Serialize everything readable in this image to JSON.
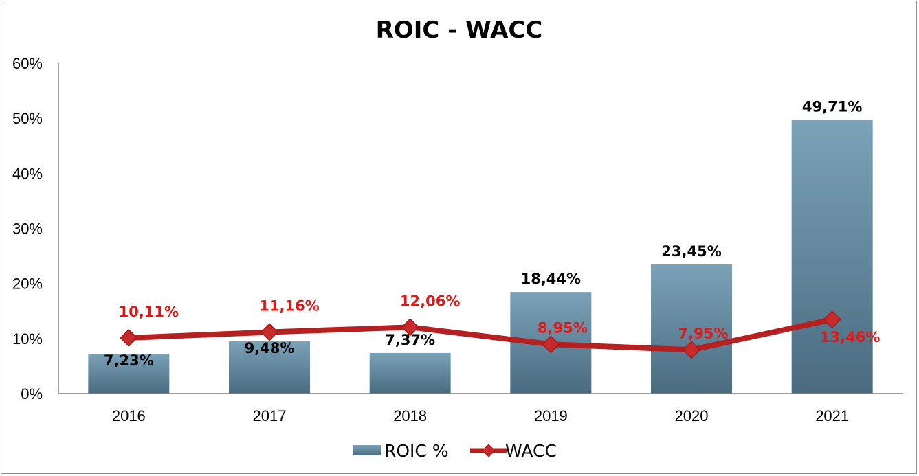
{
  "chart_data": {
    "type": "bar",
    "title": "ROIC - WACC",
    "categories": [
      "2016",
      "2017",
      "2018",
      "2019",
      "2020",
      "2021"
    ],
    "ylim": [
      0,
      60
    ],
    "yticks": [
      "0%",
      "10%",
      "20%",
      "30%",
      "40%",
      "50%",
      "60%"
    ],
    "grid": false,
    "legend_position": "bottom",
    "series": [
      {
        "name": "ROIC %",
        "kind": "bar",
        "color": "#5a7f96",
        "values": [
          7.23,
          9.48,
          7.37,
          18.44,
          23.45,
          49.71
        ],
        "labels": [
          "7,23%",
          "9,48%",
          "7,37%",
          "18,44%",
          "23,45%",
          "49,71%"
        ]
      },
      {
        "name": "WACC",
        "kind": "line",
        "color": "#b52020",
        "label_color": "#e01818",
        "values": [
          10.11,
          11.16,
          12.06,
          8.95,
          7.95,
          13.46
        ],
        "labels": [
          "10,11%",
          "11,16%",
          "12,06%",
          "8,95%",
          "7,95%",
          "13,46%"
        ]
      }
    ]
  }
}
